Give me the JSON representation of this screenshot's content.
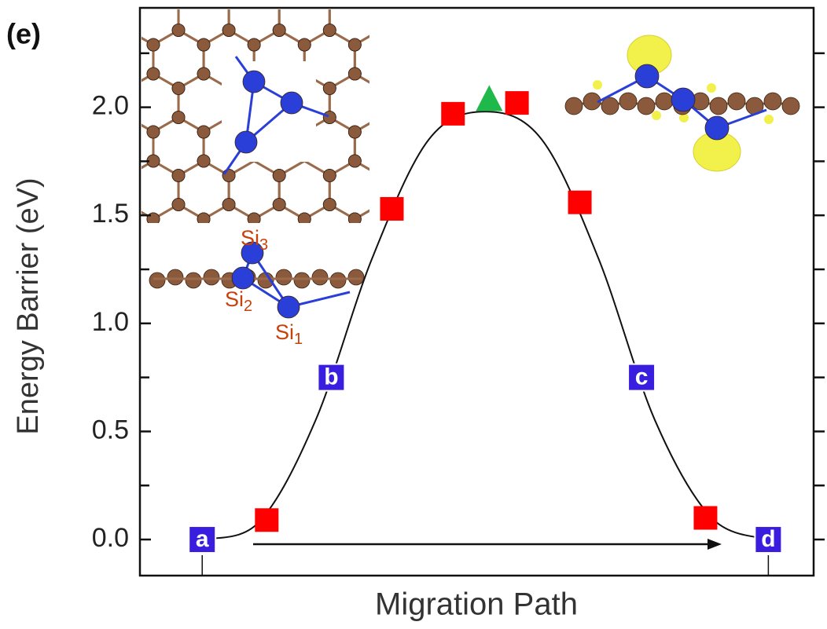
{
  "chart_data": {
    "type": "line",
    "panel_label": "(e)",
    "y_label": "Energy Barrier (eV)",
    "x_label": "Migration Path",
    "xlim": [
      -0.11,
      1.08
    ],
    "xticks": [
      0,
      1
    ],
    "ylim": [
      -0.167,
      2.46
    ],
    "yticks": [
      {
        "value": 0,
        "label": "0.0"
      },
      {
        "value": 0.5,
        "label": "0.5"
      },
      {
        "value": 1,
        "label": "1.0"
      },
      {
        "value": 1.5,
        "label": "1.5"
      },
      {
        "value": 2,
        "label": "2.0"
      }
    ],
    "minor_yticks": [
      0.25,
      0.75,
      1.25,
      1.75,
      2.25
    ],
    "series": [
      {
        "kind": "curve",
        "color": "#111111",
        "x": [
          0,
          0.1,
          0.2,
          0.3,
          0.4,
          0.5,
          0.6,
          0.7,
          0.8,
          0.9,
          1.0
        ],
        "values": [
          0,
          0.08,
          0.55,
          1.3,
          1.85,
          1.98,
          1.85,
          1.3,
          0.55,
          0.1,
          0
        ]
      },
      {
        "kind": "labeled-square",
        "color": "#3a1ee0",
        "x": [
          0,
          0.228,
          0.776,
          1.0
        ],
        "values": [
          0,
          0.75,
          0.75,
          0
        ],
        "labels": [
          "a",
          "b",
          "c",
          "d"
        ]
      },
      {
        "kind": "square",
        "color": "#ff0000",
        "x": [
          0.114,
          0.335,
          0.443,
          0.556,
          0.667,
          0.889
        ],
        "values": [
          0.09,
          1.53,
          1.97,
          2.02,
          1.56,
          0.1
        ]
      },
      {
        "kind": "triangle",
        "color": "#1fb84a",
        "x": [
          0.507
        ],
        "values": [
          2.03
        ]
      }
    ],
    "annotations": [
      {
        "text": "Si",
        "sub": "3"
      },
      {
        "text": "Si",
        "sub": "2"
      },
      {
        "text": "Si",
        "sub": "1"
      }
    ]
  }
}
